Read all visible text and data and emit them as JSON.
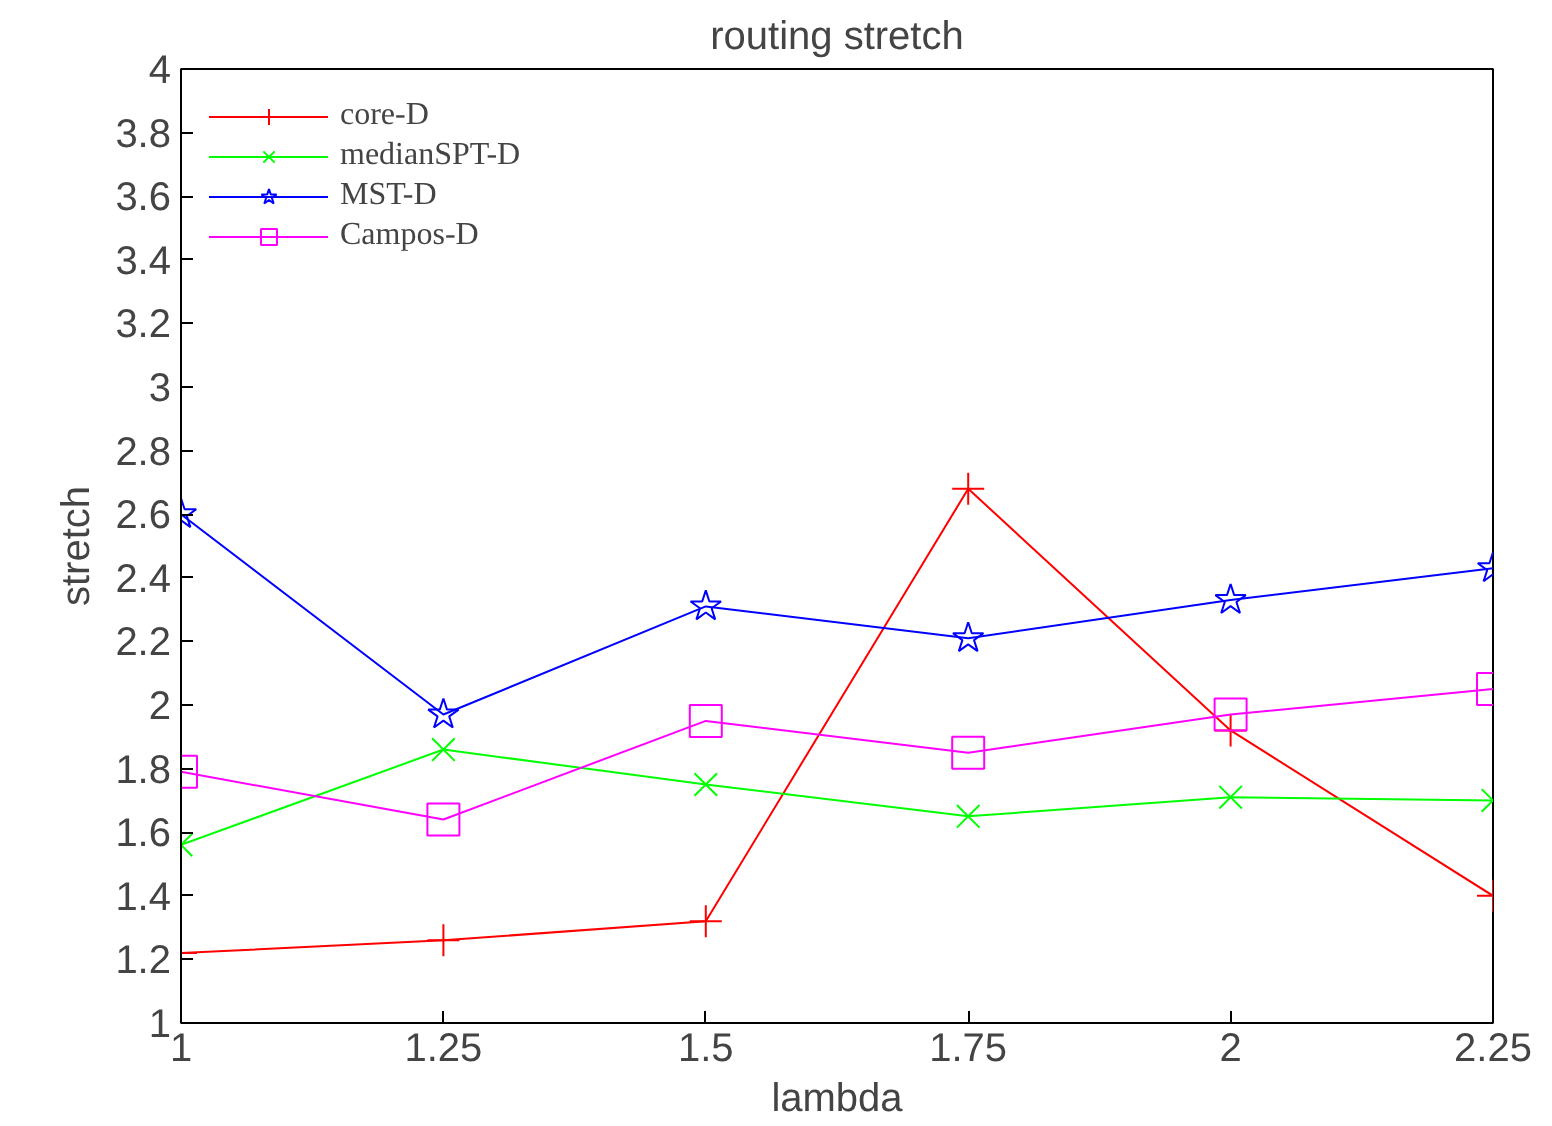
{
  "chart_data": {
    "type": "line",
    "title": "routing stretch",
    "xlabel": "lambda",
    "ylabel": "stretch",
    "x": [
      1,
      1.25,
      1.5,
      1.75,
      2,
      2.25
    ],
    "series": [
      {
        "name": "core-D",
        "color": "#ff0000",
        "marker": "cross",
        "values": [
          1.22,
          1.26,
          1.32,
          2.68,
          1.92,
          1.4
        ]
      },
      {
        "name": "medianSPT-D",
        "color": "#00ff00",
        "marker": "x",
        "values": [
          1.56,
          1.86,
          1.75,
          1.65,
          1.71,
          1.7
        ]
      },
      {
        "name": "MST-D",
        "color": "#0000ff",
        "marker": "star",
        "values": [
          2.6,
          1.97,
          2.31,
          2.21,
          2.33,
          2.43
        ]
      },
      {
        "name": "Campos-D",
        "color": "#ff00ff",
        "marker": "square",
        "values": [
          1.79,
          1.64,
          1.95,
          1.85,
          1.97,
          2.05
        ]
      }
    ],
    "xlim": [
      1,
      2.25
    ],
    "ylim": [
      1,
      4
    ],
    "xticks": [
      1,
      1.25,
      1.5,
      1.75,
      2,
      2.25
    ],
    "yticks": [
      1,
      1.2,
      1.4,
      1.6,
      1.8,
      2,
      2.2,
      2.4,
      2.6,
      2.8,
      3,
      3.2,
      3.4,
      3.6,
      3.8,
      4
    ],
    "grid": false,
    "legend": "top left",
    "line_style": "solid"
  }
}
